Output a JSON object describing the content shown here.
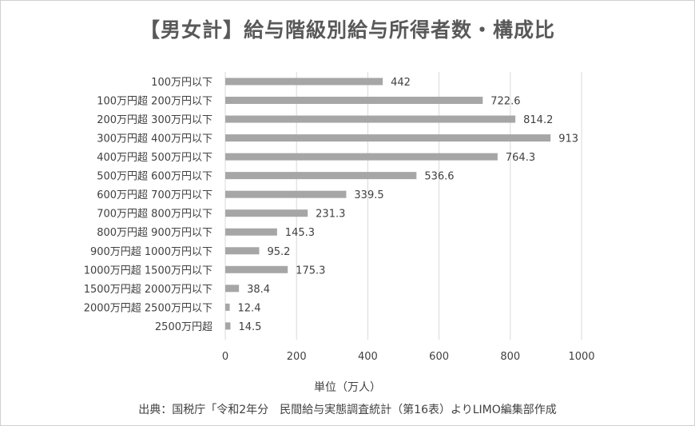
{
  "chart_data": {
    "type": "bar",
    "orientation": "horizontal",
    "title": "【男女計】給与階級別給与所得者数・構成比",
    "xlabel": "単位（万人）",
    "source": "出典：国税庁「令和2年分　民間給与実態調査統計（第16表）よりLIMO編集部作成",
    "categories": [
      "100万円以下",
      "100万円超 200万円以下",
      "200万円超 300万円以下",
      "300万円超 400万円以下",
      "400万円超 500万円以下",
      "500万円超 600万円以下",
      "600万円超 700万円以下",
      "700万円超 800万円以下",
      "800万円超 900万円以下",
      "900万円超 1000万円以下",
      "1000万円超 1500万円以下",
      "1500万円超 2000万円以下",
      "2000万円超 2500万円以下",
      "2500万円超"
    ],
    "values": [
      442,
      722.6,
      814.2,
      913,
      764.3,
      536.6,
      339.5,
      231.3,
      145.3,
      95.2,
      175.3,
      38.4,
      12.4,
      14.5
    ],
    "value_labels": [
      "442",
      "722.6",
      "814.2",
      "913",
      "764.3",
      "536.6",
      "339.5",
      "231.3",
      "145.3",
      "95.2",
      "175.3",
      "38.4",
      "12.4",
      "14.5"
    ],
    "xlim": [
      0,
      1000
    ],
    "xticks": [
      0,
      200,
      400,
      600,
      800,
      1000
    ],
    "xtick_labels": [
      "0",
      "200",
      "400",
      "600",
      "800",
      "1000"
    ],
    "grid": true,
    "legend": "none",
    "bar_color": "#a6a6a6",
    "grid_color": "#d9d9d9"
  }
}
